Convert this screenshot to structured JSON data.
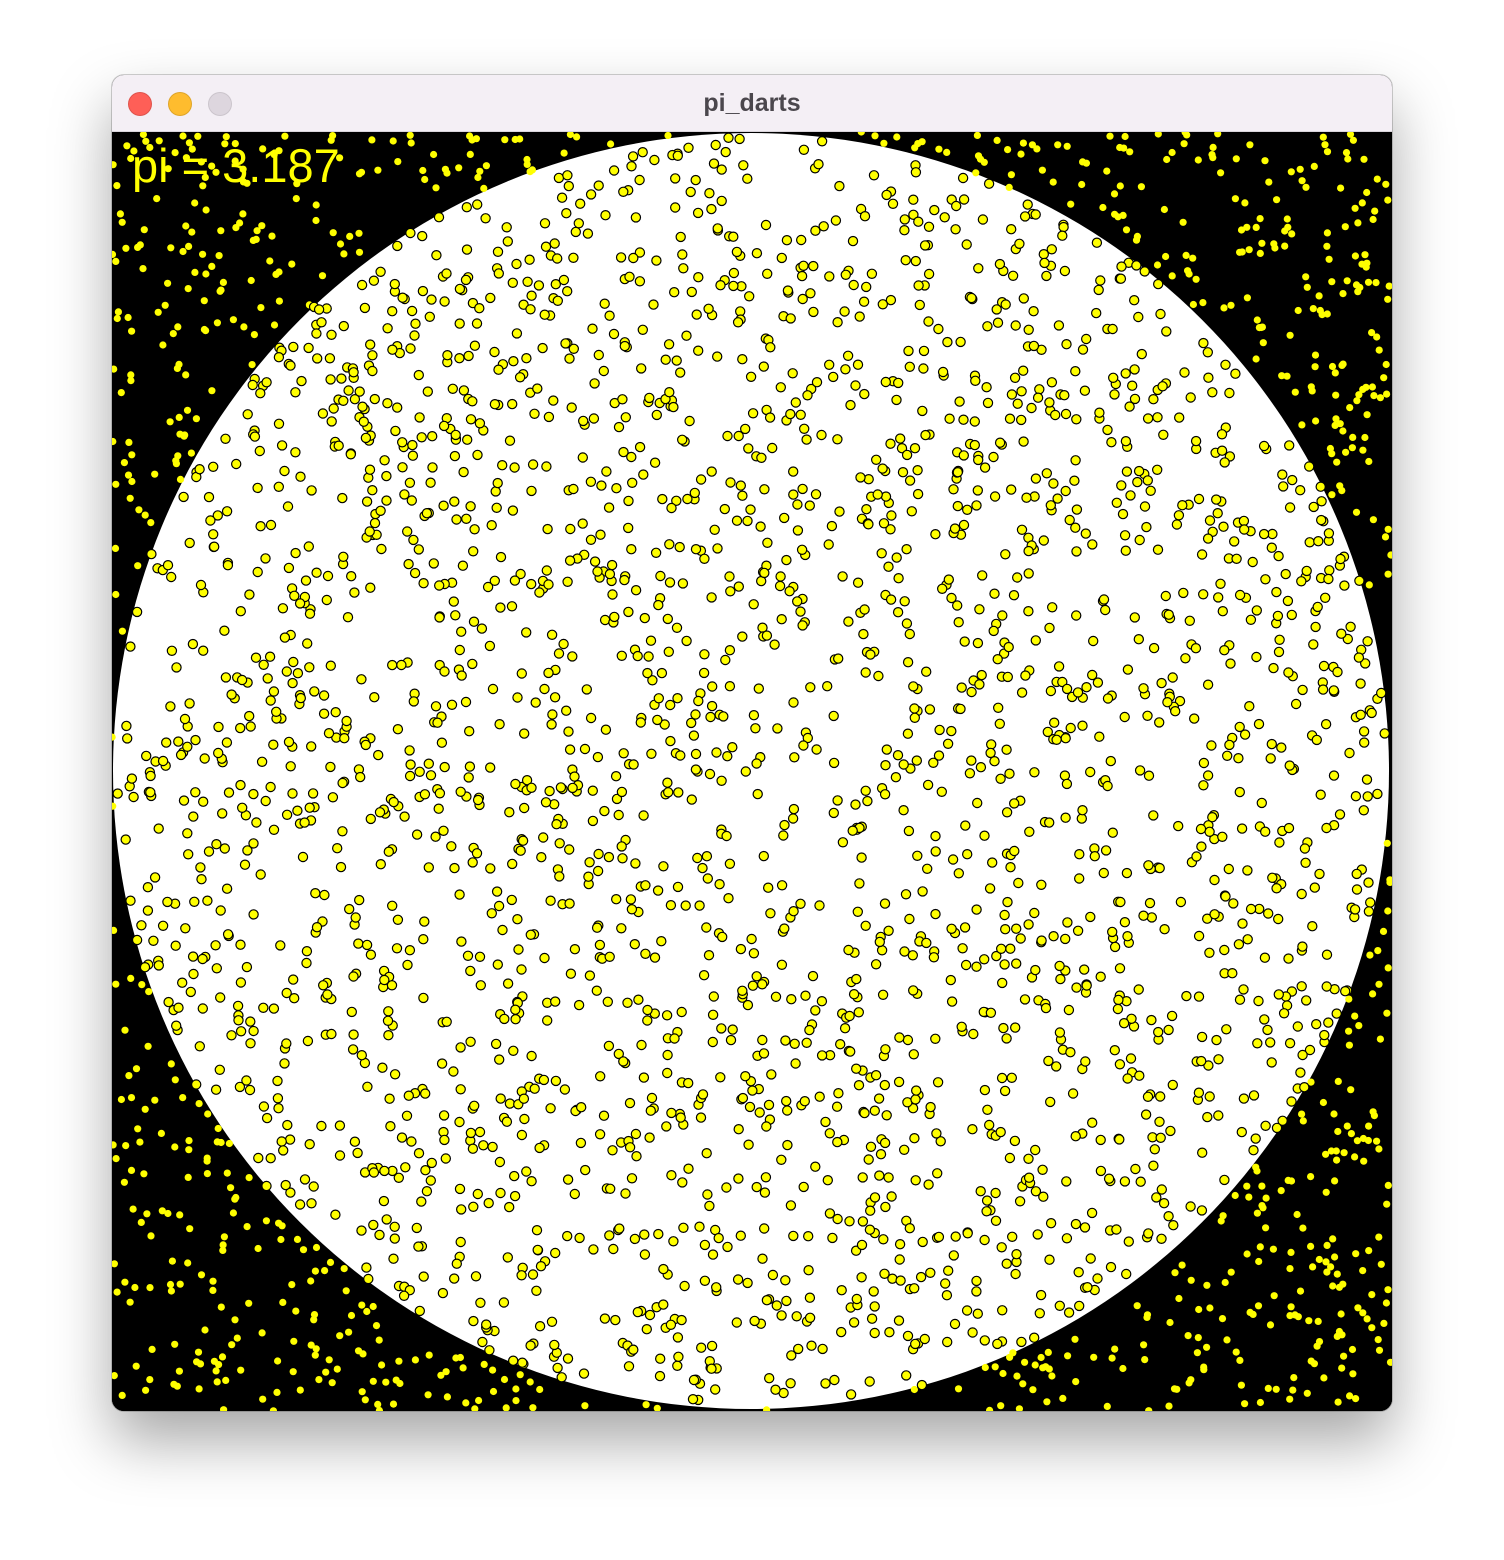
{
  "window": {
    "title": "pi_darts",
    "controls": {
      "close_color": "#fe5f57",
      "minimize_color": "#febc2e",
      "zoom_color": "#ddd6de"
    }
  },
  "readout": {
    "text": "pi = 3.187",
    "color": "#ffff00"
  },
  "scene": {
    "background_color": "#000000",
    "target_color": "#ffffff",
    "dart_color": "#ffff00",
    "dart_outline_color": "#000000",
    "dart_count": 3400,
    "inside_fraction": 0.797
  }
}
